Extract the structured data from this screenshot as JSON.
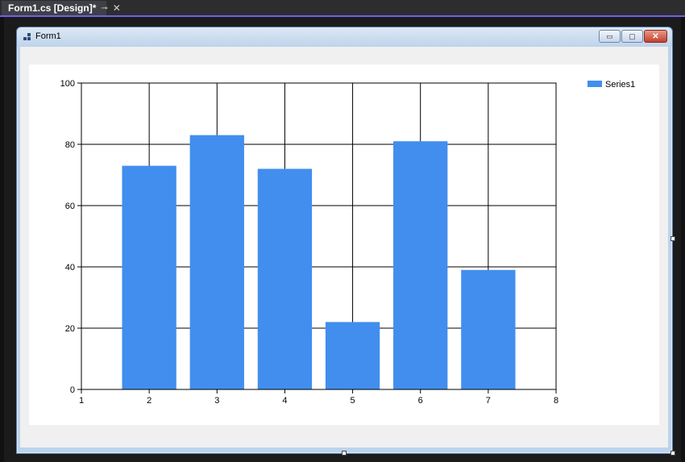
{
  "tab": {
    "title": "Form1.cs [Design]*",
    "pin_icon": "pin-icon",
    "close_icon": "close-icon"
  },
  "form": {
    "title": "Form1",
    "minimize_glyph": "▭",
    "maximize_glyph": "▢",
    "close_glyph": "✕"
  },
  "colors": {
    "bar": "#418EEE",
    "grid": "#000000",
    "tab_accent": "#7160e8"
  },
  "chart_data": {
    "type": "bar",
    "title": "",
    "xlabel": "",
    "ylabel": "",
    "x": [
      2,
      3,
      4,
      5,
      6,
      7
    ],
    "series": [
      {
        "name": "Series1",
        "values": [
          73,
          83,
          72,
          22,
          81,
          39
        ]
      }
    ],
    "xlim": [
      1,
      8
    ],
    "ylim": [
      0,
      100
    ],
    "x_ticks": [
      "1",
      "2",
      "3",
      "4",
      "5",
      "6",
      "7",
      "8"
    ],
    "y_ticks": [
      "0",
      "20",
      "40",
      "60",
      "80",
      "100"
    ],
    "grid": true,
    "legend": "top-right"
  }
}
